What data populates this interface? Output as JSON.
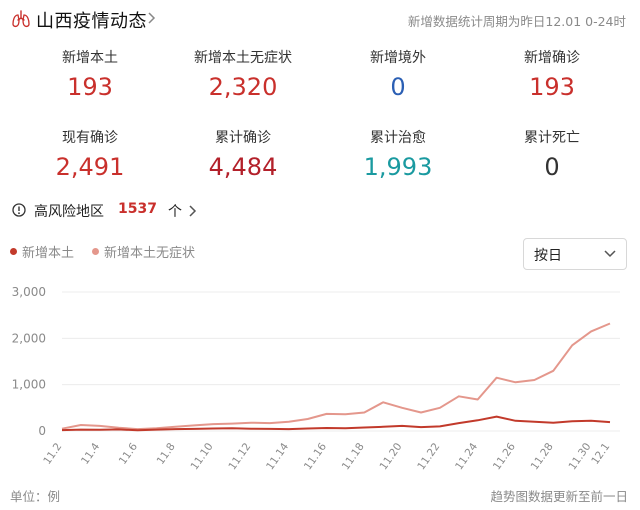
{
  "header": {
    "title": "山西疫情动态",
    "period": "新增数据统计周期为昨日12.01 0-24时",
    "icon": "lungs-icon"
  },
  "stats": [
    {
      "label": "新增本土",
      "value": "193",
      "color": "#c9302c"
    },
    {
      "label": "新增本土无症状",
      "value": "2,320",
      "color": "#c9302c"
    },
    {
      "label": "新增境外",
      "value": "0",
      "color": "#2b5fb4"
    },
    {
      "label": "新增确诊",
      "value": "193",
      "color": "#c9302c"
    },
    {
      "label": "现有确诊",
      "value": "2,491",
      "color": "#c9302c"
    },
    {
      "label": "累计确诊",
      "value": "4,484",
      "color": "#b3202a"
    },
    {
      "label": "累计治愈",
      "value": "1,993",
      "color": "#1a9aa0"
    },
    {
      "label": "累计死亡",
      "value": "0",
      "color": "#333333"
    }
  ],
  "risk": {
    "label": "高风险地区",
    "count": "1537",
    "unit": "个"
  },
  "select": {
    "value": "按日"
  },
  "footer": {
    "left": "单位：例",
    "right": "趋势图数据更新至前一日"
  },
  "chart_data": {
    "type": "line",
    "x": [
      "11.2",
      "11.3",
      "11.4",
      "11.5",
      "11.6",
      "11.7",
      "11.8",
      "11.9",
      "11.10",
      "11.11",
      "11.12",
      "11.13",
      "11.14",
      "11.15",
      "11.16",
      "11.17",
      "11.18",
      "11.19",
      "11.20",
      "11.21",
      "11.22",
      "11.23",
      "11.24",
      "11.25",
      "11.26",
      "11.27",
      "11.28",
      "11.29",
      "11.30",
      "12.1"
    ],
    "x_tick_labels": [
      "11.2",
      "11.4",
      "11.6",
      "11.8",
      "11.10",
      "11.12",
      "11.14",
      "11.16",
      "11.18",
      "11.20",
      "11.22",
      "11.24",
      "11.26",
      "11.28",
      "11.30",
      "12.1"
    ],
    "series": [
      {
        "name": "新增本土",
        "color": "#c23a2b",
        "values": [
          20,
          30,
          25,
          35,
          15,
          30,
          40,
          45,
          55,
          60,
          50,
          45,
          40,
          55,
          65,
          60,
          75,
          90,
          110,
          85,
          100,
          170,
          230,
          310,
          220,
          200,
          180,
          210,
          220,
          193
        ]
      },
      {
        "name": "新增本土无症状",
        "color": "#e4978c",
        "values": [
          50,
          130,
          110,
          70,
          40,
          60,
          90,
          120,
          150,
          160,
          180,
          170,
          200,
          260,
          370,
          360,
          400,
          620,
          500,
          400,
          500,
          750,
          680,
          1150,
          1050,
          1100,
          1300,
          1850,
          2150,
          2320
        ]
      }
    ],
    "yticks": [
      "0",
      "1,000",
      "2,000",
      "3,000"
    ],
    "ylim": [
      0,
      3000
    ],
    "grid": true,
    "legend": "top-left"
  }
}
